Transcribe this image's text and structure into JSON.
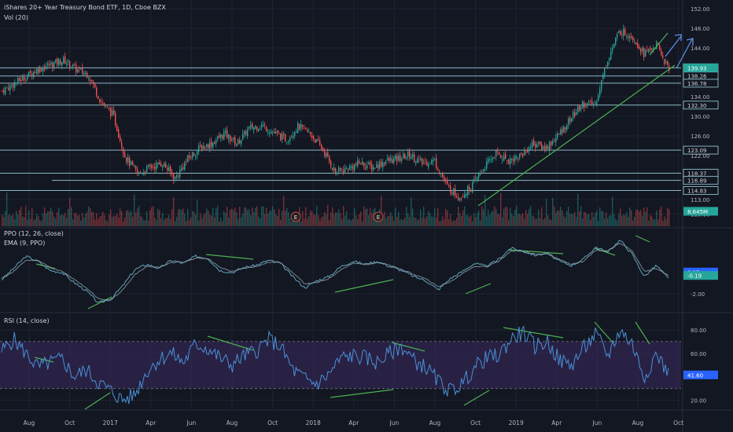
{
  "chart_data": [
    {
      "type": "candlestick",
      "title": "iShares 20+ Year Treasury Bond ETF, 1D, Cboe BZX",
      "indicator_label": "Vol (20)",
      "ylim": [
        108,
        153
      ],
      "ticks": [
        {
          "v": 152,
          "t": "152.00"
        },
        {
          "v": 148,
          "t": "148.00"
        },
        {
          "v": 144,
          "t": "144.00"
        },
        {
          "v": 134,
          "t": "134.00"
        },
        {
          "v": 130,
          "t": "130.00"
        },
        {
          "v": 126,
          "t": "126.00"
        },
        {
          "v": 122,
          "t": "122.00"
        },
        {
          "v": 113,
          "t": "113.00"
        },
        {
          "v": 110,
          "t": "110.00"
        }
      ],
      "levels": [
        {
          "v": 139.93,
          "t": "139.93"
        },
        {
          "v": 138.26,
          "t": "138.26"
        },
        {
          "v": 136.78,
          "t": "136.78"
        },
        {
          "v": 132.3,
          "t": "132.30"
        },
        {
          "v": 123.09,
          "t": "123.09"
        },
        {
          "v": 118.37,
          "t": "118.37"
        },
        {
          "v": 116.89,
          "t": "116.89"
        },
        {
          "v": 114.83,
          "t": "114.83"
        }
      ],
      "price_badge": {
        "v": 139.93,
        "t": "139.93"
      },
      "volume_badge": "8.645M",
      "close_path": [
        [
          0,
          135.2
        ],
        [
          3,
          139.8
        ],
        [
          5,
          141.5
        ],
        [
          6,
          139.6
        ],
        [
          7,
          138.5
        ],
        [
          8,
          133.0
        ],
        [
          9,
          130.2
        ],
        [
          10,
          121.5
        ],
        [
          11,
          118.2
        ],
        [
          12,
          119.6
        ],
        [
          13,
          120.4
        ],
        [
          14,
          117.3
        ],
        [
          15,
          121.2
        ],
        [
          16,
          123.5
        ],
        [
          17,
          124.5
        ],
        [
          18,
          126.5
        ],
        [
          19,
          124.4
        ],
        [
          20,
          127.5
        ],
        [
          21,
          128.2
        ],
        [
          22,
          126.6
        ],
        [
          23,
          125.2
        ],
        [
          24,
          128.0
        ],
        [
          25,
          126.3
        ],
        [
          26,
          123.0
        ],
        [
          27,
          118.5
        ],
        [
          28,
          119.3
        ],
        [
          29,
          120.5
        ],
        [
          30,
          119.5
        ],
        [
          31,
          120.8
        ],
        [
          32,
          121.2
        ],
        [
          33,
          122.2
        ],
        [
          34,
          120.4
        ],
        [
          35,
          121.0
        ],
        [
          36,
          115.8
        ],
        [
          37,
          113.5
        ],
        [
          38,
          115.6
        ],
        [
          39,
          119.5
        ],
        [
          40,
          122.5
        ],
        [
          41,
          121.0
        ],
        [
          42,
          122.0
        ],
        [
          43,
          124.5
        ],
        [
          44,
          123.5
        ],
        [
          45,
          126.0
        ],
        [
          46,
          129.5
        ],
        [
          47,
          132.5
        ],
        [
          48,
          132.4
        ],
        [
          49,
          141.5
        ],
        [
          50,
          147.5
        ],
        [
          51,
          146.5
        ],
        [
          52,
          142.8
        ],
        [
          53,
          144.6
        ],
        [
          54,
          139.3
        ]
      ]
    },
    {
      "type": "line",
      "title": "PPO (12, 26, close)",
      "subtitle": "EMA (9, PPO)",
      "ylim": [
        -3.6,
        4.1
      ],
      "ticks": [
        {
          "v": -2.0,
          "t": "-2.00"
        }
      ],
      "badges": [
        {
          "v": 0.15,
          "t": "0.15"
        },
        {
          "v": -0.19,
          "t": "-0.19"
        }
      ],
      "series": [
        {
          "values": [
            -0.6,
            0.5,
            1.7,
            1.2,
            0.3,
            0.1,
            -0.9,
            -1.7,
            -2.9,
            -2.5,
            -1.2,
            0.4,
            0.9,
            0.5,
            1.3,
            1.0,
            1.7,
            1.5,
            0.3,
            0.1,
            0.6,
            0.8,
            1.3,
            1.0,
            -0.3,
            -1.4,
            -0.7,
            -0.3,
            0.7,
            1.2,
            0.9,
            1.2,
            0.7,
            0.3,
            -0.3,
            -0.7,
            -1.6,
            -0.5,
            0.2,
            1.0,
            0.7,
            1.4,
            2.5,
            2.2,
            1.8,
            2.0,
            1.2,
            0.8,
            1.4,
            2.6,
            2.1,
            3.3,
            1.9,
            -0.3,
            0.8,
            -0.5
          ]
        },
        {
          "values": [
            -0.5,
            0.2,
            1.3,
            1.3,
            0.6,
            0.2,
            -0.6,
            -1.4,
            -2.5,
            -2.6,
            -1.6,
            -0.1,
            0.7,
            0.6,
            1.1,
            1.1,
            1.5,
            1.5,
            0.6,
            0.2,
            0.5,
            0.7,
            1.1,
            1.1,
            0.1,
            -1.0,
            -0.9,
            -0.5,
            0.4,
            1.0,
            0.9,
            1.1,
            0.8,
            0.4,
            -0.1,
            -0.5,
            -1.3,
            -0.8,
            0.0,
            0.7,
            0.7,
            1.2,
            2.2,
            2.2,
            1.9,
            1.9,
            1.4,
            0.9,
            1.2,
            2.3,
            2.2,
            3.0,
            2.2,
            0.2,
            0.5,
            -0.2
          ]
        }
      ]
    },
    {
      "type": "line",
      "title": "RSI (14, close)",
      "ylim": [
        13,
        92
      ],
      "ticks": [
        {
          "v": 80,
          "t": "80.00"
        },
        {
          "v": 60,
          "t": "60.00"
        },
        {
          "v": 20,
          "t": "20.00"
        }
      ],
      "band": [
        30,
        70
      ],
      "badge": {
        "v": 41.6,
        "t": "41.60"
      },
      "series": [
        {
          "values": [
            62,
            72,
            60,
            48,
            52,
            55,
            40,
            46,
            35,
            28,
            20,
            25,
            45,
            55,
            60,
            52,
            68,
            64,
            56,
            50,
            58,
            62,
            72,
            66,
            46,
            38,
            34,
            42,
            56,
            58,
            56,
            52,
            60,
            66,
            54,
            48,
            36,
            28,
            34,
            48,
            56,
            58,
            72,
            78,
            66,
            70,
            54,
            50,
            64,
            76,
            58,
            80,
            68,
            40,
            60,
            42
          ]
        }
      ]
    }
  ],
  "x_axis": {
    "labels": [
      "Aug",
      "Oct",
      "2017",
      "Apr",
      "Jun",
      "Aug",
      "Oct",
      "2018",
      "Apr",
      "Jun",
      "Aug",
      "Oct",
      "2019",
      "Apr",
      "Jun",
      "Aug",
      "Oct"
    ]
  },
  "colors": {
    "background": "#131722",
    "up": "#26a69a",
    "down": "#ef5350",
    "level": "#9fd5e0",
    "trend": "#4caf50",
    "ppo": "#5fa3b8",
    "signal": "#90a4ae",
    "rsi": "#4a90d9",
    "band": "#3b2a5e",
    "arrow": "#5b8fe0"
  },
  "event_markers": [
    "E",
    "E"
  ]
}
